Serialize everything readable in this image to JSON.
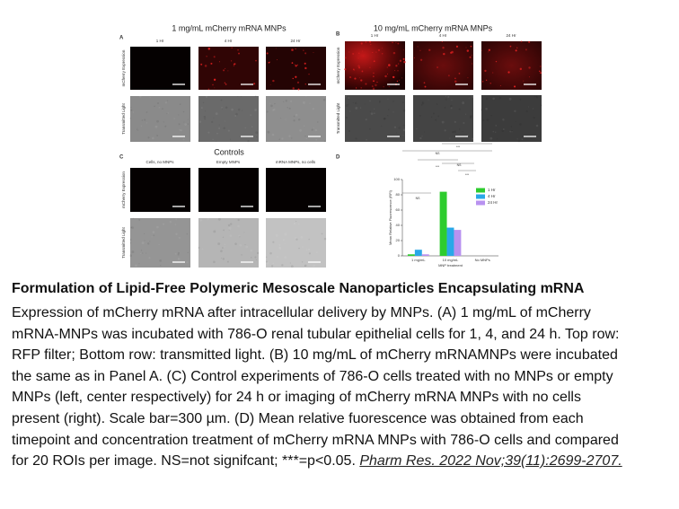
{
  "figure": {
    "panel_labels": [
      "A",
      "B",
      "C",
      "D"
    ],
    "panel_a": {
      "title": "1 mg/mL mCherry mRNA MNPs",
      "columns": [
        "1 Hr",
        "4 Hr",
        "24 Hr"
      ],
      "rows": [
        "mCherry Expression",
        "Transmitted Light"
      ]
    },
    "panel_b": {
      "title": "10 mg/mL mCherry mRNA MNPs",
      "columns": [
        "1 Hr",
        "4 Hr",
        "24 Hr"
      ],
      "rows": [
        "mCherry Expression",
        "Transmitted Light"
      ]
    },
    "panel_c": {
      "title": "Controls",
      "columns": [
        "Cells, no MNPs",
        "Empty MNPs",
        "mRNA MNPs, no cells"
      ],
      "rows": [
        "mCherry Expression",
        "Transmitted Light"
      ]
    }
  },
  "chart_data": {
    "type": "bar",
    "y_label": "Mean Relative Fluorescence (RFI)",
    "x_label": "MNP treatment",
    "categories": [
      "1 mg/mL",
      "10 mg/mL",
      "No MNPs"
    ],
    "series": [
      {
        "name": "1 Hr",
        "color": "#2ecc2e",
        "values": [
          2,
          84,
          0
        ]
      },
      {
        "name": "4 Hr",
        "color": "#29a8e8",
        "values": [
          8,
          37,
          0
        ]
      },
      {
        "name": "24 Hr",
        "color": "#b892f0",
        "values": [
          2,
          34,
          0
        ]
      }
    ],
    "ylim": [
      0,
      100
    ],
    "yticks": [
      0,
      20,
      40,
      60,
      80,
      100
    ],
    "annotations": [
      "NS",
      "NS",
      "NS",
      "***",
      "***",
      "***"
    ]
  },
  "caption": {
    "title": "Formulation of Lipid-Free Polymeric Mesoscale Nanoparticles Encapsulating mRNA",
    "lines": [
      "Expression of mCherry mRNA after intracellular delivery by MNPs. (A) 1 mg/mL of mCherry",
      "mRNA-MNPs was incubated with 786-O renal tubular epithelial cells for 1, 4, and 24 h. Top row:",
      "RFP filter; Bottom row: transmitted light. (B) 10 mg/mL of mCherry mRNAMNPs were incubated",
      "the same as in Panel A. (C) Control experiments of 786-O cells treated with no MNPs or empty",
      "MNPs (left, center respectively) for 24 h or imaging of mCherry mRNA MNPs with no cells",
      "present (right). Scale bar=300 µm. (D) Mean relative fuorescence was obtained from each",
      "timepoint and concentration treatment of mCherry mRNA MNPs with 786-O cells and compared",
      "for 20 ROIs per image. NS=not signifcant; ***=p<0.05."
    ],
    "citation": "Pharm Res. 2022 Nov;39(11):2699-2707."
  }
}
